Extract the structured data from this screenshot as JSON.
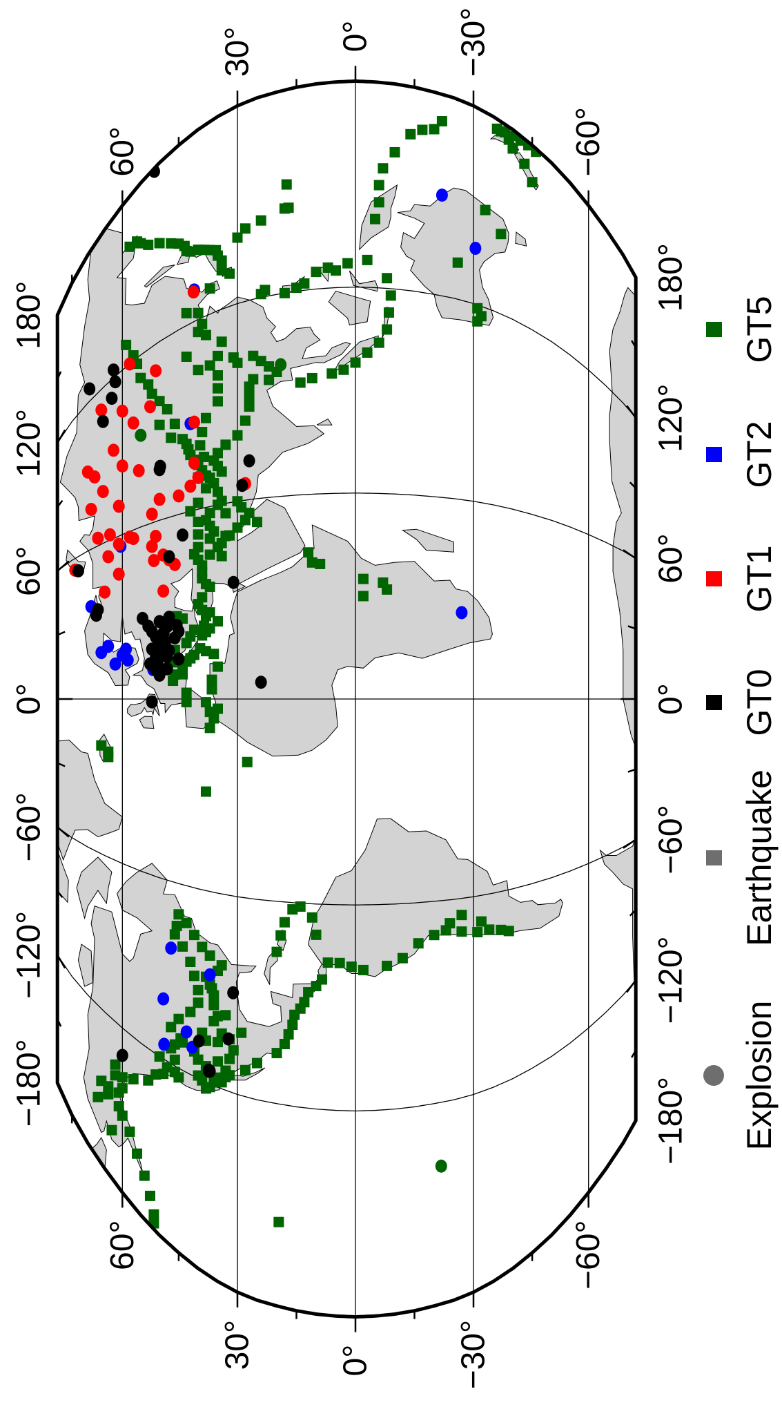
{
  "map": {
    "projection": "Robinson",
    "lon_labels": [
      "−180°",
      "−120°",
      "−60°",
      "0°",
      "60°",
      "120°",
      "180°"
    ],
    "lon_values": [
      -180,
      -120,
      -60,
      0,
      60,
      120,
      180
    ],
    "lat_labels": [
      "60°",
      "30°",
      "0°",
      "−30°",
      "−60°"
    ],
    "lat_values": [
      60,
      30,
      0,
      -30,
      -60
    ],
    "land_color": "#d3d3d3"
  },
  "legend": {
    "items": [
      {
        "label": "Explosion",
        "symbol": "circle",
        "color": "#6e6e6e"
      },
      {
        "label": "Earthquake",
        "symbol": "square",
        "color": "#6e6e6e"
      },
      {
        "label": "GT0",
        "symbol": "square",
        "color": "#000000"
      },
      {
        "label": "GT1",
        "symbol": "square",
        "color": "#ff0000"
      },
      {
        "label": "GT2",
        "symbol": "square",
        "color": "#0000ff"
      },
      {
        "label": "GT5",
        "symbol": "square",
        "color": "#006400"
      }
    ]
  },
  "colors": {
    "GT0": "#000000",
    "GT1": "#ff0000",
    "GT2": "#0000ff",
    "GT5": "#006400"
  },
  "events": {
    "GT5_earthquake": [
      [
        -122,
        38
      ],
      [
        -121,
        37
      ],
      [
        -119,
        36
      ],
      [
        -118,
        34
      ],
      [
        -117,
        35
      ],
      [
        -116,
        33
      ],
      [
        -120,
        39
      ],
      [
        -119,
        40
      ],
      [
        -117,
        38
      ],
      [
        -115,
        38
      ],
      [
        -114,
        40
      ],
      [
        -112,
        41
      ],
      [
        -111,
        44
      ],
      [
        -110,
        44.5
      ],
      [
        -113,
        46
      ],
      [
        -115,
        47
      ],
      [
        -118,
        46
      ],
      [
        -122,
        46
      ],
      [
        -123,
        45
      ],
      [
        -122,
        48
      ],
      [
        -106,
        35
      ],
      [
        -107,
        38
      ],
      [
        -105,
        39
      ],
      [
        -104,
        32
      ],
      [
        -103,
        34
      ],
      [
        -100,
        36
      ],
      [
        -98,
        35
      ],
      [
        -97,
        33
      ],
      [
        -95,
        36
      ],
      [
        -92,
        36
      ],
      [
        -90,
        36.5
      ],
      [
        -89,
        37
      ],
      [
        -87,
        38
      ],
      [
        -84,
        35
      ],
      [
        -82,
        34
      ],
      [
        -80,
        37
      ],
      [
        -78,
        39
      ],
      [
        -75,
        41
      ],
      [
        -72,
        43
      ],
      [
        -70,
        45
      ],
      [
        -74,
        45.5
      ],
      [
        -77,
        46
      ],
      [
        -80,
        44
      ],
      [
        -84,
        42
      ],
      [
        -88,
        41
      ],
      [
        -92,
        40
      ],
      [
        -96,
        40
      ],
      [
        -100,
        42
      ],
      [
        -104,
        45
      ],
      [
        -108,
        47
      ],
      [
        -112,
        35
      ],
      [
        -114,
        33
      ],
      [
        -110,
        32
      ],
      [
        -107,
        31
      ],
      [
        -101,
        29
      ],
      [
        -120,
        50
      ],
      [
        -125,
        49
      ],
      [
        -127,
        51
      ],
      [
        -131,
        53
      ],
      [
        -135,
        57
      ],
      [
        -138,
        60
      ],
      [
        -136,
        62
      ],
      [
        -150,
        61
      ],
      [
        -152,
        60
      ],
      [
        -147,
        64
      ],
      [
        -155,
        58
      ],
      [
        -160,
        56
      ],
      [
        -165,
        54
      ],
      [
        -170,
        52.5
      ],
      [
        -175,
        51.5
      ],
      [
        -178,
        51.5
      ],
      [
        -142,
        60
      ],
      [
        -145,
        61
      ],
      [
        -150,
        64
      ],
      [
        -156,
        67
      ],
      [
        -162,
        63
      ],
      [
        -148,
        66
      ],
      [
        -140,
        62
      ],
      [
        -115,
        32
      ],
      [
        -112,
        28
      ],
      [
        -109,
        25
      ],
      [
        -105,
        20
      ],
      [
        -102,
        18
      ],
      [
        -99,
        17
      ],
      [
        -96,
        16
      ],
      [
        -93,
        15.5
      ],
      [
        -91,
        14
      ],
      [
        -89,
        13
      ],
      [
        -86,
        12
      ],
      [
        -84,
        10
      ],
      [
        -82,
        8.5
      ],
      [
        -77,
        7
      ],
      [
        -77,
        4
      ],
      [
        -78,
        1
      ],
      [
        -79,
        -2
      ],
      [
        -78,
        -8
      ],
      [
        -76,
        -12
      ],
      [
        -72,
        -16
      ],
      [
        -70,
        -20
      ],
      [
        -69,
        -23
      ],
      [
        -70,
        -27
      ],
      [
        -71,
        -31
      ],
      [
        -71,
        -34
      ],
      [
        -72,
        -37
      ],
      [
        -73,
        -39
      ],
      [
        -67,
        -24
      ],
      [
        -65,
        -27
      ],
      [
        -68,
        -32
      ],
      [
        -66,
        18
      ],
      [
        -62,
        16
      ],
      [
        -61,
        14
      ],
      [
        -70,
        19
      ],
      [
        -75,
        20
      ],
      [
        -64,
        11
      ],
      [
        -69,
        10
      ],
      [
        -20,
        64
      ],
      [
        -18,
        66
      ],
      [
        -22,
        64
      ],
      [
        -19,
        27.5
      ],
      [
        -29,
        38
      ],
      [
        -155,
        19.5
      ],
      [
        -9,
        37
      ],
      [
        -4,
        37
      ],
      [
        -1,
        38
      ],
      [
        3,
        36.5
      ],
      [
        8,
        44
      ],
      [
        10,
        44
      ],
      [
        12,
        43
      ],
      [
        13,
        42
      ],
      [
        14,
        41
      ],
      [
        15,
        38
      ],
      [
        16,
        39.5
      ],
      [
        20,
        39
      ],
      [
        21,
        38
      ],
      [
        22,
        37
      ],
      [
        23,
        38.5
      ],
      [
        24,
        35
      ],
      [
        26,
        38
      ],
      [
        27,
        37
      ],
      [
        28,
        39
      ],
      [
        30,
        40
      ],
      [
        32,
        39
      ],
      [
        35,
        37
      ],
      [
        36,
        38
      ],
      [
        38,
        39
      ],
      [
        40,
        39
      ],
      [
        42,
        39
      ],
      [
        44,
        40
      ],
      [
        46,
        41
      ],
      [
        48,
        40
      ],
      [
        50,
        37
      ],
      [
        52,
        36
      ],
      [
        54,
        37
      ],
      [
        56,
        38
      ],
      [
        58,
        37
      ],
      [
        60,
        35
      ],
      [
        48,
        34
      ],
      [
        50,
        32
      ],
      [
        52,
        30
      ],
      [
        54,
        28
      ],
      [
        56,
        27
      ],
      [
        58,
        29
      ],
      [
        60,
        30
      ],
      [
        47,
        35
      ],
      [
        45,
        37
      ],
      [
        44,
        34
      ],
      [
        57,
        33
      ],
      [
        61,
        34
      ],
      [
        64,
        35
      ],
      [
        67,
        36
      ],
      [
        69,
        37
      ],
      [
        70,
        38
      ],
      [
        72,
        39
      ],
      [
        74,
        40
      ],
      [
        76,
        41
      ],
      [
        78,
        42
      ],
      [
        80,
        42.5
      ],
      [
        82,
        43
      ],
      [
        84,
        44
      ],
      [
        70,
        34
      ],
      [
        72,
        35
      ],
      [
        74,
        36
      ],
      [
        76,
        35
      ],
      [
        78,
        33
      ],
      [
        80,
        30
      ],
      [
        84,
        28
      ],
      [
        88,
        27
      ],
      [
        91,
        27
      ],
      [
        94,
        27
      ],
      [
        96,
        26
      ],
      [
        95,
        22
      ],
      [
        97,
        20
      ],
      [
        99,
        22
      ],
      [
        101,
        24
      ],
      [
        103,
        26
      ],
      [
        102,
        30
      ],
      [
        104,
        31
      ],
      [
        100,
        35
      ],
      [
        96,
        35
      ],
      [
        92,
        35
      ],
      [
        88,
        38
      ],
      [
        84,
        39
      ],
      [
        80,
        39.5
      ],
      [
        76,
        38.5
      ],
      [
        104,
        37
      ],
      [
        106,
        35
      ],
      [
        110,
        34
      ],
      [
        114,
        38
      ],
      [
        116,
        40
      ],
      [
        118,
        39
      ],
      [
        122,
        40
      ],
      [
        124,
        43
      ],
      [
        110,
        43
      ],
      [
        104,
        40
      ],
      [
        86,
        47
      ],
      [
        90,
        46
      ],
      [
        96,
        48
      ],
      [
        100,
        50
      ],
      [
        104,
        52
      ],
      [
        108,
        53
      ],
      [
        112,
        55
      ],
      [
        118,
        56
      ],
      [
        122,
        57
      ],
      [
        128,
        59
      ],
      [
        92,
        50
      ],
      [
        70,
        40
      ],
      [
        66,
        38
      ],
      [
        62,
        40
      ],
      [
        60,
        42
      ],
      [
        56,
        40
      ],
      [
        52,
        40
      ],
      [
        26,
        44
      ],
      [
        27,
        45.5
      ],
      [
        20,
        42
      ],
      [
        22,
        41
      ],
      [
        18,
        43
      ],
      [
        16,
        46
      ],
      [
        20,
        47
      ],
      [
        12,
        46
      ],
      [
        8,
        46
      ],
      [
        6,
        46.5
      ],
      [
        2,
        43
      ],
      [
        -1,
        43
      ],
      [
        -6,
        36
      ],
      [
        -3,
        35
      ],
      [
        6,
        36.5
      ],
      [
        10,
        35
      ],
      [
        14,
        36
      ],
      [
        53,
        25
      ],
      [
        50,
        33
      ],
      [
        39.5,
        9
      ],
      [
        35,
        -2
      ],
      [
        34,
        -7
      ],
      [
        30,
        -2
      ],
      [
        32,
        -8
      ],
      [
        40,
        11
      ],
      [
        43,
        12
      ],
      [
        130,
        32
      ],
      [
        132,
        34
      ],
      [
        135,
        34
      ],
      [
        137,
        35
      ],
      [
        139,
        35.5
      ],
      [
        140,
        37
      ],
      [
        141,
        38.5
      ],
      [
        142,
        40
      ],
      [
        143,
        42
      ],
      [
        144,
        43
      ],
      [
        146,
        43.5
      ],
      [
        148,
        45
      ],
      [
        150,
        47
      ],
      [
        153,
        50
      ],
      [
        156,
        53
      ],
      [
        159,
        55
      ],
      [
        161,
        56
      ],
      [
        162,
        58
      ],
      [
        128,
        37
      ],
      [
        121,
        24
      ],
      [
        122,
        23
      ],
      [
        120,
        18
      ],
      [
        121,
        15
      ],
      [
        122,
        13
      ],
      [
        125,
        10
      ],
      [
        126,
        7
      ],
      [
        125,
        5
      ],
      [
        127,
        2
      ],
      [
        128,
        -3
      ],
      [
        123,
        -8
      ],
      [
        118,
        -9
      ],
      [
        113,
        -8.5
      ],
      [
        108,
        -8
      ],
      [
        104,
        -6
      ],
      [
        101,
        -3
      ],
      [
        98,
        0
      ],
      [
        96,
        3
      ],
      [
        95,
        6
      ],
      [
        94,
        11
      ],
      [
        93,
        14
      ],
      [
        140,
        -5
      ],
      [
        145,
        -6
      ],
      [
        150,
        -6
      ],
      [
        155,
        -7
      ],
      [
        160,
        -10
      ],
      [
        166,
        -14
      ],
      [
        168,
        -17
      ],
      [
        169,
        -20
      ],
      [
        172,
        -22
      ],
      [
        145,
        17
      ],
      [
        145,
        18
      ],
      [
        143,
        24
      ],
      [
        142,
        28
      ],
      [
        140,
        30
      ],
      [
        152,
        17.5
      ],
      [
        174,
        -40
      ],
      [
        176,
        -39
      ],
      [
        172,
        -43
      ],
      [
        168,
        -45
      ],
      [
        177,
        -37
      ],
      [
        177,
        -36
      ],
      [
        177.5,
        -38
      ],
      [
        178,
        -40
      ],
      [
        178.5,
        -42
      ],
      [
        179,
        -44
      ],
      [
        179,
        -46
      ],
      [
        115,
        -31
      ],
      [
        117,
        -32
      ],
      [
        119,
        -31
      ],
      [
        131,
        -26
      ],
      [
        145,
        -37
      ],
      [
        150,
        -33
      ]
    ],
    "GT5_explosion": [
      [
        -139,
        -21.8
      ],
      [
        99,
        19
      ],
      [
        92,
        55
      ]
    ],
    "GT2_explosion": [
      [
        37,
        69
      ],
      [
        13,
        62
      ],
      [
        16,
        60
      ],
      [
        18,
        59
      ],
      [
        14,
        58.5
      ],
      [
        20,
        64
      ],
      [
        18,
        66
      ],
      [
        10,
        51.7
      ],
      [
        56,
        60.5
      ],
      [
        88,
        42
      ],
      [
        26,
        -27
      ],
      [
        150,
        -22
      ],
      [
        137,
        -30.5
      ],
      [
        -82,
        47
      ],
      [
        -86,
        37
      ],
      [
        -100,
        49
      ],
      [
        -107,
        43
      ],
      [
        -115,
        48.8
      ],
      [
        -111,
        41.5
      ],
      [
        130,
        41
      ]
    ],
    "GT1_explosion": [
      [
        111,
        51
      ],
      [
        98,
        57
      ],
      [
        93,
        62.5
      ],
      [
        80,
        55.5
      ],
      [
        88,
        41
      ],
      [
        75,
        41
      ],
      [
        129.5,
        41.2
      ],
      [
        88,
        68
      ],
      [
        92,
        70
      ],
      [
        80,
        65.5
      ],
      [
        71,
        61
      ],
      [
        76,
        69
      ],
      [
        67,
        50
      ],
      [
        66,
        45
      ],
      [
        68,
        42
      ],
      [
        70,
        40
      ],
      [
        63,
        52
      ],
      [
        62,
        63.5
      ],
      [
        63,
        67
      ],
      [
        57,
        61
      ],
      [
        57,
        57
      ],
      [
        52,
        52
      ],
      [
        54,
        64
      ],
      [
        48,
        49
      ],
      [
        46,
        47.5
      ],
      [
        44,
        46
      ],
      [
        55,
        74
      ],
      [
        46,
        61
      ],
      [
        41,
        65
      ],
      [
        36,
        49
      ],
      [
        65,
        28
      ],
      [
        120,
        58
      ],
      [
        112,
        66
      ],
      [
        105,
        60
      ],
      [
        85,
        60
      ],
      [
        100,
        52.5
      ],
      [
        47,
        51.5
      ],
      [
        55,
        51
      ],
      [
        58,
        58
      ]
    ],
    "GT0_explosion": [
      [
        -116,
        37.1
      ],
      [
        -116.2,
        37.2
      ],
      [
        -116.05,
        37
      ],
      [
        -115.9,
        37.3
      ],
      [
        -108,
        39.8
      ],
      [
        -104,
        32.3
      ],
      [
        -89.5,
        31.1
      ],
      [
        -130,
        60
      ],
      [
        179,
        51.4
      ],
      [
        118,
        62
      ],
      [
        123,
        62.5
      ],
      [
        125,
        69.5
      ],
      [
        113,
        63
      ],
      [
        107,
        65.5
      ],
      [
        77,
        50
      ],
      [
        78,
        49.8
      ],
      [
        71.7,
        27
      ],
      [
        64.6,
        28.8
      ],
      [
        53,
        44
      ],
      [
        47,
        47.5
      ],
      [
        35.5,
        31
      ],
      [
        5,
        24
      ],
      [
        33,
        67.5
      ],
      [
        35,
        67
      ],
      [
        54,
        73
      ],
      [
        -1,
        52
      ],
      [
        8,
        50
      ],
      [
        10,
        51
      ],
      [
        12,
        50.5
      ],
      [
        14,
        51
      ],
      [
        16,
        50
      ],
      [
        18,
        50
      ],
      [
        20,
        50.3
      ],
      [
        22,
        49
      ],
      [
        24,
        48
      ],
      [
        14,
        48
      ],
      [
        16,
        47.5
      ],
      [
        19,
        48.5
      ],
      [
        21,
        51
      ],
      [
        23,
        52
      ],
      [
        26,
        50
      ],
      [
        12,
        52.5
      ],
      [
        17,
        52
      ],
      [
        25,
        53
      ],
      [
        28,
        54.5
      ],
      [
        20,
        46
      ],
      [
        22,
        45
      ],
      [
        24,
        45.5
      ],
      [
        27,
        47.5
      ],
      [
        13,
        45
      ],
      [
        10,
        48
      ]
    ]
  }
}
